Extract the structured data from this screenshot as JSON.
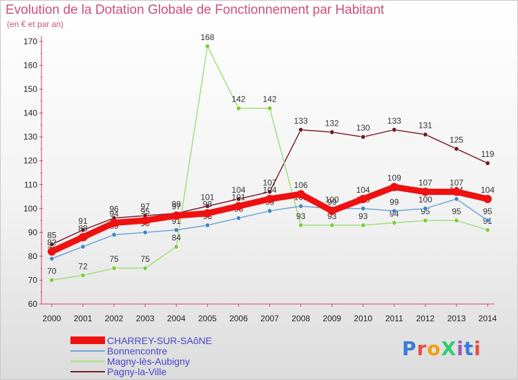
{
  "header": {
    "title": "Evolution de la Dotation Globale de Fonctionnement par Habitant",
    "subtitle": "(en € et par an)"
  },
  "logo": {
    "text": "ProXiti",
    "colors": [
      "#3a7bd5",
      "#e84c3d",
      "#f39c12",
      "#2ecc71",
      "#9b59b6",
      "#3a7bd5",
      "#e84c3d"
    ]
  },
  "chart_data": {
    "type": "line",
    "title": "Evolution de la Dotation Globale de Fonctionnement par Habitant",
    "subtitle": "(en € et par an)",
    "xlabel": "",
    "ylabel": "",
    "ylim": [
      60,
      170
    ],
    "yticks": [
      60,
      70,
      80,
      90,
      100,
      110,
      120,
      130,
      140,
      150,
      160,
      170
    ],
    "categories": [
      "2000",
      "2001",
      "2002",
      "2003",
      "2004",
      "2005",
      "2006",
      "2007",
      "2008",
      "2009",
      "2010",
      "2011",
      "2012",
      "2013",
      "2014"
    ],
    "grid": false,
    "legend_position": "bottom-left",
    "series": [
      {
        "name": "Pagny-la-Ville",
        "color": "#7a1f2e",
        "marker": "#6e1a22",
        "values": [
          85,
          91,
          96,
          97,
          98,
          101,
          104,
          107,
          133,
          132,
          130,
          133,
          131,
          125,
          119
        ],
        "labels": [
          "85",
          "91",
          "96",
          "97",
          "98",
          "101",
          "104",
          "107",
          "133",
          "132",
          "130",
          "133",
          "131",
          "125",
          "119"
        ]
      },
      {
        "name": "Magny-lès-Aubigny",
        "color": "#9ee07a",
        "marker": "#7dcc3a",
        "values": [
          70,
          72,
          75,
          75,
          84,
          168,
          142,
          142,
          93,
          93,
          93,
          94,
          95,
          95,
          91
        ],
        "labels": [
          "70",
          "72",
          "75",
          "75",
          "84",
          "168",
          "142",
          "142",
          "93",
          "93",
          "93",
          "94",
          "95",
          "95",
          "91"
        ]
      },
      {
        "name": "Bonnencontre",
        "color": "#6aa6d6",
        "marker": "#3d86c6",
        "values": [
          79,
          84,
          89,
          90,
          91,
          93,
          96,
          99,
          101,
          100,
          100,
          99,
          100,
          104,
          95
        ],
        "labels": [
          "79",
          "84",
          "89",
          "90",
          "91",
          "93",
          "96",
          "99",
          "101",
          "100",
          "100",
          "99",
          "100",
          "104",
          "95"
        ]
      },
      {
        "name": "CHARREY-SUR-SAôNE",
        "color": "#ee1111",
        "marker": "#ee1111",
        "values": [
          82,
          88,
          94,
          95,
          97,
          98,
          101,
          104,
          106,
          99,
          104,
          109,
          107,
          107,
          104
        ],
        "labels": [
          "82",
          "88",
          "94",
          "95",
          "97",
          "98",
          "101",
          "104",
          "106",
          "99",
          "104",
          "109",
          "107",
          "107",
          "104"
        ]
      }
    ],
    "legend": [
      "CHARREY-SUR-SAôNE",
      "Bonnencontre",
      "Magny-lès-Aubigny",
      "Pagny-la-Ville"
    ]
  }
}
